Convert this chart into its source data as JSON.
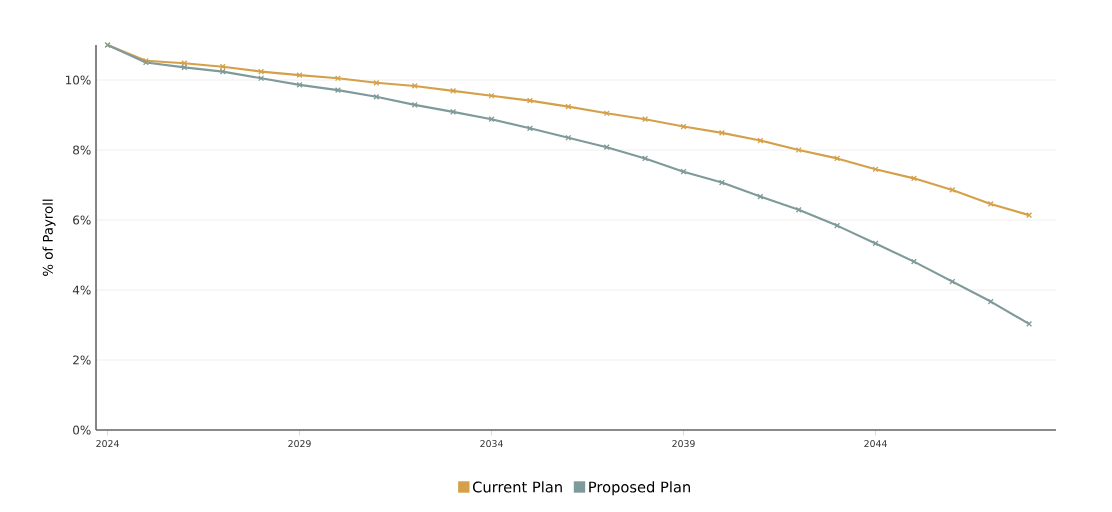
{
  "chart_data": {
    "type": "line",
    "ylabel": "% of Payroll",
    "x": [
      2024,
      2025,
      2026,
      2027,
      2028,
      2029,
      2030,
      2031,
      2032,
      2033,
      2034,
      2035,
      2036,
      2037,
      2038,
      2039,
      2040,
      2041,
      2042,
      2043,
      2044,
      2045,
      2046,
      2047,
      2048
    ],
    "series": [
      {
        "name": "Current Plan",
        "color": "#d4a04a",
        "values": [
          11.0,
          10.55,
          10.48,
          10.38,
          10.24,
          10.14,
          10.05,
          9.92,
          9.83,
          9.69,
          9.55,
          9.41,
          9.24,
          9.05,
          8.88,
          8.67,
          8.49,
          8.27,
          8.0,
          7.76,
          7.45,
          7.19,
          6.86,
          6.46,
          6.14
        ]
      },
      {
        "name": "Proposed Plan",
        "color": "#7f9a9a",
        "values": [
          11.0,
          10.5,
          10.36,
          10.24,
          10.05,
          9.86,
          9.71,
          9.52,
          9.29,
          9.09,
          8.88,
          8.62,
          8.35,
          8.08,
          7.76,
          7.38,
          7.07,
          6.67,
          6.29,
          5.84,
          5.33,
          4.81,
          4.24,
          3.67,
          3.03
        ]
      }
    ],
    "xlim": [
      2023.7,
      2048.7
    ],
    "xticks": [
      2024,
      2029,
      2034,
      2039,
      2044
    ],
    "ylim": [
      0,
      11
    ],
    "yticks": [
      {
        "value": 0,
        "label": "0%"
      },
      {
        "value": 2,
        "label": "2%"
      },
      {
        "value": 4,
        "label": "4%"
      },
      {
        "value": 6,
        "label": "6%"
      },
      {
        "value": 8,
        "label": "8%"
      },
      {
        "value": 10,
        "label": "10%"
      }
    ],
    "grid": "y",
    "legend": "bottom",
    "marker": "cross",
    "line_style": "solid"
  }
}
